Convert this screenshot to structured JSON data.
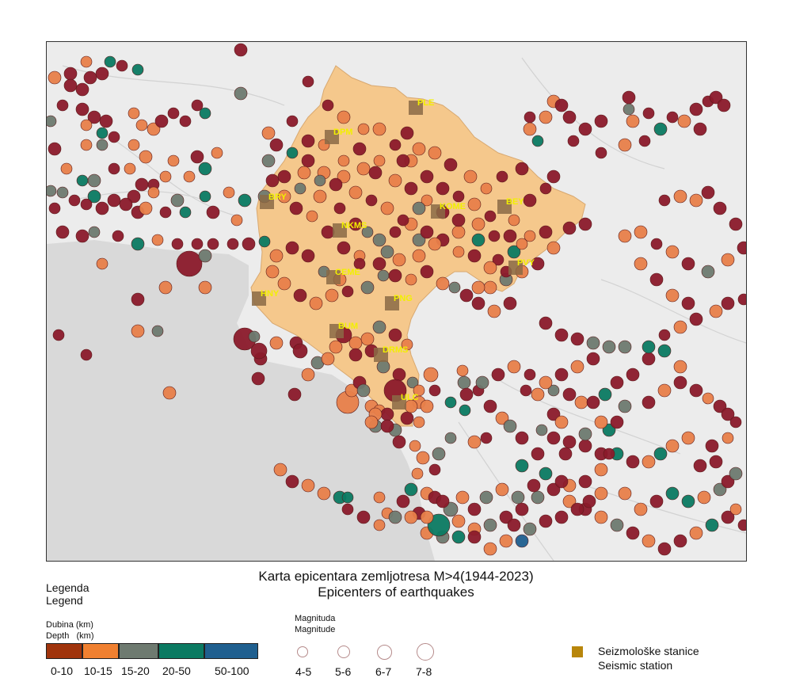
{
  "title": "Karta epicentara zemljotresa M>4(1944-2023)",
  "subtitle": "Epicenters of earthquakes",
  "legend": {
    "heading_1": "Legenda",
    "heading_2": "Legend",
    "depth_label_1": "Dubina (km)",
    "depth_label_2": "Depth   (km)",
    "depth_classes": [
      {
        "label": "0-10",
        "color": "#a0340c"
      },
      {
        "label": "10-15",
        "color": "#f08030"
      },
      {
        "label": "15-20",
        "color": "#6e7a70"
      },
      {
        "label": "20-50",
        "color": "#0b7a62"
      },
      {
        "label": "50-100",
        "color": "#1f5f8f"
      }
    ],
    "magnitude_label_1": "Magnituda",
    "magnitude_label_2": "Magnitude",
    "magnitude_classes": [
      "4-5",
      "5-6",
      "6-7",
      "7-8"
    ],
    "station_label_1": "Seizmološke stanice",
    "station_label_2": "Seismic station",
    "station_color": "#b8860b"
  },
  "map": {
    "land_color": "#ececec",
    "sea_color": "#d9d9d9",
    "montenegro_fill": "#f5c88c",
    "station_label_color": "#f2f000",
    "epicenter_colors": {
      "deep_red": "#8b1a2b",
      "orange": "#e8804a",
      "gray": "#6e7a70",
      "teal": "#0b7a62",
      "blue": "#1f5f8f"
    },
    "stations": [
      "PLE",
      "DPM",
      "BRY",
      "NKMS",
      "KOME",
      "BEY",
      "PVY",
      "CEME",
      "HNY",
      "PNG",
      "BUM",
      "DRMS",
      "ULC"
    ]
  }
}
